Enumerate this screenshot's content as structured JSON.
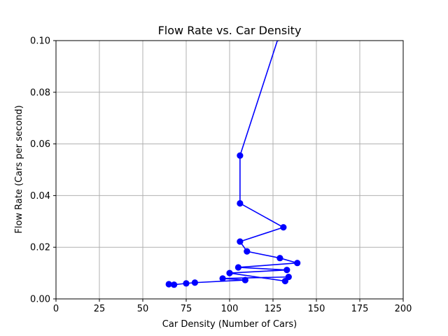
{
  "chart_data": {
    "type": "line",
    "title": "Flow Rate vs. Car Density",
    "xlabel": "Car Density (Number of Cars)",
    "ylabel": "Flow Rate (Cars per second)",
    "xlim": [
      0,
      200
    ],
    "ylim": [
      0,
      0.1
    ],
    "xticks": [
      "0",
      "25",
      "50",
      "75",
      "100",
      "125",
      "150",
      "175",
      "200"
    ],
    "yticks": [
      "0.00",
      "0.02",
      "0.04",
      "0.06",
      "0.08",
      "0.10"
    ],
    "grid": true,
    "marker": "circle",
    "series": [
      {
        "color": "#0000ff",
        "points": [
          {
            "x": 65,
            "y": 0.0057
          },
          {
            "x": 68,
            "y": 0.0055
          },
          {
            "x": 75,
            "y": 0.006
          },
          {
            "x": 80,
            "y": 0.0063
          },
          {
            "x": 109,
            "y": 0.0073
          },
          {
            "x": 96,
            "y": 0.0079
          },
          {
            "x": 134,
            "y": 0.0085
          },
          {
            "x": 132,
            "y": 0.0069
          },
          {
            "x": 100,
            "y": 0.01
          },
          {
            "x": 133,
            "y": 0.0112
          },
          {
            "x": 105,
            "y": 0.0122
          },
          {
            "x": 139,
            "y": 0.0139
          },
          {
            "x": 129,
            "y": 0.0158
          },
          {
            "x": 110,
            "y": 0.0184
          },
          {
            "x": 106,
            "y": 0.0222
          },
          {
            "x": 131,
            "y": 0.0277
          },
          {
            "x": 106,
            "y": 0.037
          },
          {
            "x": 106,
            "y": 0.0555
          },
          {
            "x": 128,
            "y": 0.101
          }
        ]
      }
    ]
  }
}
